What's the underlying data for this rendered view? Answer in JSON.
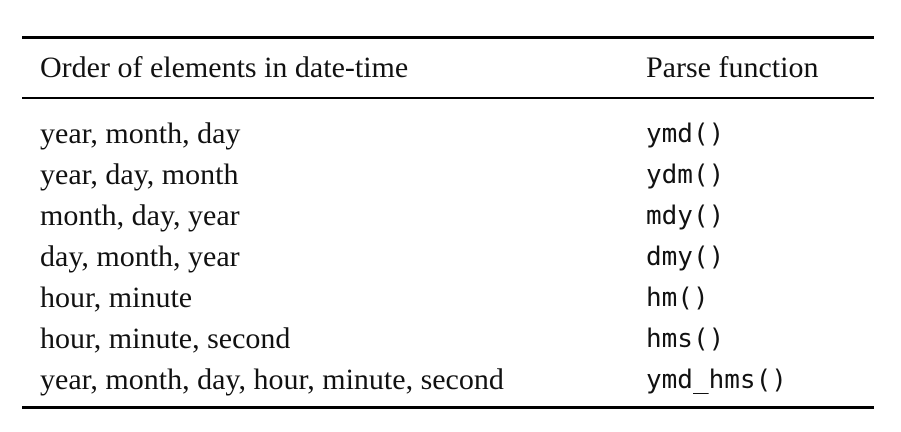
{
  "table": {
    "header": [
      "Order of elements in date-time",
      "Parse function"
    ],
    "rows": [
      [
        "year, month, day",
        "ymd()"
      ],
      [
        "year, day, month",
        "ydm()"
      ],
      [
        "month, day, year",
        "mdy()"
      ],
      [
        "day, month, year",
        "dmy()"
      ],
      [
        "hour, minute",
        "hm()"
      ],
      [
        "hour, minute, second",
        "hms()"
      ],
      [
        "year, month, day, hour, minute, second",
        "ymd_hms()"
      ]
    ]
  }
}
